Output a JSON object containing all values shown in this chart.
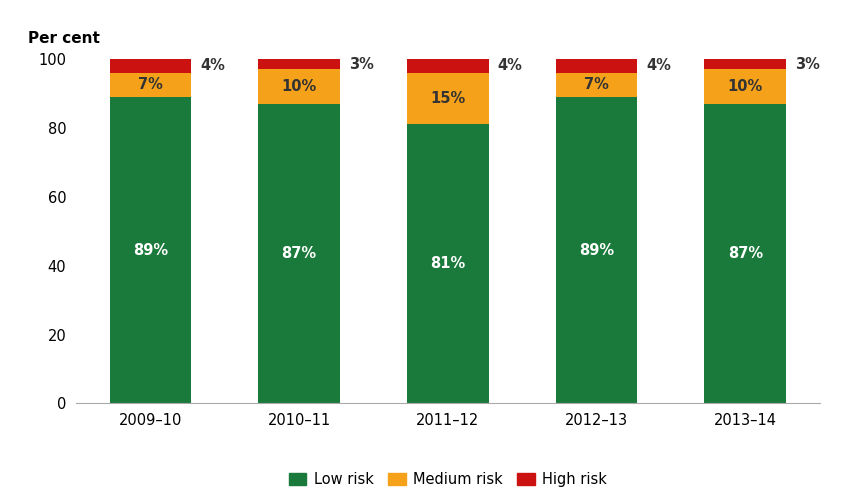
{
  "categories": [
    "2009–10",
    "2010–11",
    "2011–12",
    "2012–13",
    "2013–14"
  ],
  "low_risk": [
    89,
    87,
    81,
    89,
    87
  ],
  "medium_risk": [
    7,
    10,
    15,
    7,
    10
  ],
  "high_risk": [
    4,
    3,
    4,
    4,
    3
  ],
  "low_risk_color": "#1a7a3c",
  "medium_risk_color": "#f5a11a",
  "high_risk_color": "#cc1111",
  "low_risk_label": "Low risk",
  "medium_risk_label": "Medium risk",
  "high_risk_label": "High risk",
  "ylabel": "Per cent",
  "ylim": [
    0,
    100
  ],
  "yticks": [
    0,
    20,
    40,
    60,
    80,
    100
  ],
  "bar_width": 0.55,
  "label_fontsize": 10.5,
  "tick_fontsize": 10.5,
  "ylabel_fontsize": 11,
  "legend_fontsize": 10.5,
  "low_risk_label_color": "white",
  "medium_risk_label_color": "#333333",
  "high_risk_label_color": "#333333",
  "background_color": "#ffffff"
}
